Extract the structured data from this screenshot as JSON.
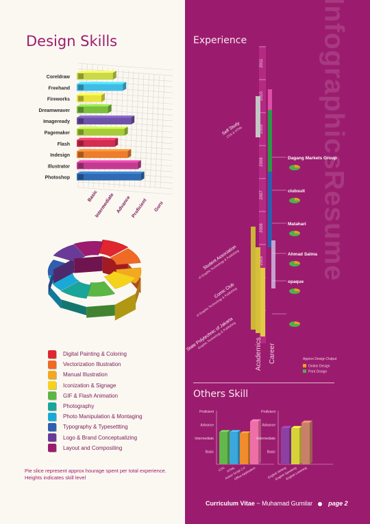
{
  "left": {
    "title": "Design Skills",
    "skill_chart": {
      "type": "bar",
      "categories": [
        "Coreldraw",
        "Freehand",
        "Fireworks",
        "Dreamweaver",
        "Imageready",
        "Pagemaker",
        "Flash",
        "Indesign",
        "Illustrator",
        "Photoshop"
      ],
      "levels": [
        "Basic",
        "Intermediate",
        "Advance",
        "Proficient",
        "Guru"
      ],
      "values": [
        2.2,
        2.8,
        1.5,
        1.9,
        3.3,
        2.9,
        2.3,
        3.1,
        3.7,
        3.9
      ],
      "colors": [
        "#c9d94a",
        "#3fbde6",
        "#e9e43c",
        "#7cbf3d",
        "#6d52a7",
        "#a8cb3a",
        "#d32d52",
        "#ec7d2d",
        "#c43a92",
        "#2f6cb3"
      ],
      "xlim": [
        0,
        5
      ]
    },
    "legend": [
      {
        "label": "Digital Painting & Coloring",
        "color": "#e0262e"
      },
      {
        "label": "Vectorization Illustration",
        "color": "#ef6a24"
      },
      {
        "label": "Manual Illustration",
        "color": "#f4a81f"
      },
      {
        "label": "Iconization & Signage",
        "color": "#f5d21c"
      },
      {
        "label": "GIF & Flash Animation",
        "color": "#5bb644"
      },
      {
        "label": "Photography",
        "color": "#1aa59a"
      },
      {
        "label": "Photo Manipulation & Montaging",
        "color": "#18a9d8"
      },
      {
        "label": "Typography & Typesettting",
        "color": "#2f5eb0"
      },
      {
        "label": "Logo & Brand Conceptualizing",
        "color": "#6a3a98"
      },
      {
        "label": "Layout and Compositing",
        "color": "#9b1c6e"
      }
    ],
    "note": "Pie slice represent approx hourage spent per total experience. Heights indicates skill level"
  },
  "right": {
    "watermark": "InfographicsResume",
    "experience_title": "Experience",
    "timeline": {
      "years": [
        "2011",
        "2010",
        "2009",
        "2008",
        "2007",
        "2006",
        "2005",
        "2004",
        "2003"
      ],
      "academics_label": "Academics",
      "career_label": "Career",
      "academics": [
        {
          "label": "Self Study",
          "sub": "CSS & HTML"
        },
        {
          "label": "Student Association",
          "sub": "of Graphic Technology & Publishing"
        },
        {
          "label": "Comic Club",
          "sub": "of Graphic Technology & Publishing"
        },
        {
          "label": "State Polytechnic of Jakarta",
          "sub": "Graphic Technology & Publishing"
        }
      ],
      "career": [
        {
          "label": "Dagang Markets Group"
        },
        {
          "label": "clubsuit"
        },
        {
          "label": "Matahari"
        },
        {
          "label": "Ahmad Salma"
        },
        {
          "label": "opaque"
        },
        {
          "label": ""
        }
      ],
      "output_legend_title": "Approx Design Output",
      "output_legend": [
        {
          "label": "Online Design",
          "color": "#f39a21"
        },
        {
          "label": "Print Design",
          "color": "#4eb04a"
        }
      ]
    },
    "others_title": "Others Skill",
    "others_chart": [
      {
        "type": "bar",
        "levels": [
          "Basic",
          "Intermediate",
          "Advance",
          "Proficient"
        ],
        "categories": [
          "CSS",
          "HTML",
          "Action Script 2.0",
          "Office Application"
        ],
        "values": [
          2.4,
          2.4,
          2.3,
          3.2
        ],
        "colors": [
          "#62b84a",
          "#3aa7dd",
          "#f08c2c",
          "#ee6fa8"
        ],
        "ylim": [
          0,
          4
        ]
      },
      {
        "type": "bar",
        "levels": [
          "Basic",
          "Intermediate",
          "Advance",
          "Proficient"
        ],
        "categories": [
          "English Writing",
          "English Speaking",
          "English Listening"
        ],
        "values": [
          2.7,
          2.7,
          3.1
        ],
        "colors": [
          "#8e3fa2",
          "#d8d23a",
          "#c98068"
        ],
        "ylim": [
          0,
          4
        ]
      }
    ]
  },
  "footer": {
    "cv": "Curriculum Vitae",
    "dash": " ~ ",
    "name": "Muhamad Gumilar",
    "page": "page 2"
  }
}
